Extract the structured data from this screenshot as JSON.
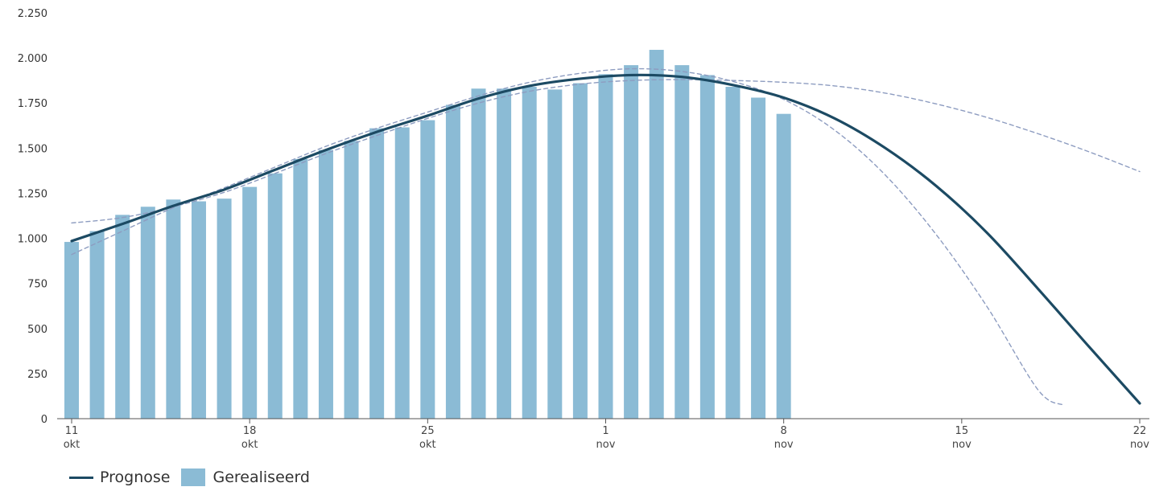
{
  "chart_data": {
    "type": "bar+line",
    "title": "",
    "xlabel": "",
    "ylabel": "",
    "ylim": [
      0,
      2250
    ],
    "yticks": [
      0,
      250,
      500,
      750,
      1000,
      1250,
      1500,
      1750,
      2000,
      2250
    ],
    "ytick_labels": [
      "0",
      "250",
      "500",
      "750",
      "1.000",
      "1.250",
      "1.500",
      "1.750",
      "2.000",
      "2.250"
    ],
    "xlim": [
      "2020-10-11",
      "2020-11-22"
    ],
    "xticks": [
      {
        "date": "2020-10-11",
        "day": "11",
        "month": "okt"
      },
      {
        "date": "2020-10-18",
        "day": "18",
        "month": "okt"
      },
      {
        "date": "2020-10-25",
        "day": "25",
        "month": "okt"
      },
      {
        "date": "2020-11-01",
        "day": "1",
        "month": "nov"
      },
      {
        "date": "2020-11-08",
        "day": "8",
        "month": "nov"
      },
      {
        "date": "2020-11-15",
        "day": "15",
        "month": "nov"
      },
      {
        "date": "2020-11-22",
        "day": "22",
        "month": "nov"
      }
    ],
    "grid": false,
    "legend_position": "bottom-left",
    "series": [
      {
        "name": "Gerealiseerd",
        "type": "bar",
        "color": "#8bbbd5",
        "x": [
          "2020-10-11",
          "2020-10-12",
          "2020-10-13",
          "2020-10-14",
          "2020-10-15",
          "2020-10-16",
          "2020-10-17",
          "2020-10-18",
          "2020-10-19",
          "2020-10-20",
          "2020-10-21",
          "2020-10-22",
          "2020-10-23",
          "2020-10-24",
          "2020-10-25",
          "2020-10-26",
          "2020-10-27",
          "2020-10-28",
          "2020-10-29",
          "2020-10-30",
          "2020-10-31",
          "2020-11-01",
          "2020-11-02",
          "2020-11-03",
          "2020-11-04",
          "2020-11-05",
          "2020-11-06",
          "2020-11-07",
          "2020-11-08"
        ],
        "values": [
          980,
          1040,
          1130,
          1175,
          1215,
          1205,
          1220,
          1285,
          1360,
          1440,
          1490,
          1540,
          1610,
          1615,
          1655,
          1740,
          1830,
          1830,
          1840,
          1825,
          1860,
          1910,
          1960,
          2045,
          1960,
          1905,
          1840,
          1780,
          1690
        ]
      },
      {
        "name": "Prognose",
        "type": "line",
        "color": "#1c4a63",
        "x": [
          "2020-10-11",
          "2020-10-13",
          "2020-10-15",
          "2020-10-17",
          "2020-10-19",
          "2020-10-21",
          "2020-10-23",
          "2020-10-25",
          "2020-10-27",
          "2020-10-29",
          "2020-10-31",
          "2020-11-02",
          "2020-11-04",
          "2020-11-06",
          "2020-11-08",
          "2020-11-10",
          "2020-11-12",
          "2020-11-14",
          "2020-11-16",
          "2020-11-18",
          "2020-11-20",
          "2020-11-22"
        ],
        "values": [
          985,
          1080,
          1180,
          1270,
          1380,
          1490,
          1590,
          1680,
          1775,
          1845,
          1885,
          1905,
          1895,
          1850,
          1780,
          1665,
          1500,
          1290,
          1030,
          720,
          400,
          85
        ]
      },
      {
        "type": "line",
        "style": "dashed",
        "color": "#8d9cc0",
        "x": [
          "2020-10-11",
          "2020-10-13",
          "2020-10-15",
          "2020-10-17",
          "2020-10-19",
          "2020-10-21",
          "2020-10-23",
          "2020-10-25",
          "2020-10-27",
          "2020-10-29",
          "2020-10-31",
          "2020-11-02",
          "2020-11-04",
          "2020-11-06",
          "2020-11-08",
          "2020-11-10",
          "2020-11-12",
          "2020-11-14",
          "2020-11-16",
          "2020-11-18",
          "2020-11-20",
          "2020-11-22"
        ],
        "values": [
          1085,
          1115,
          1175,
          1255,
          1360,
          1470,
          1570,
          1665,
          1750,
          1815,
          1855,
          1875,
          1880,
          1875,
          1865,
          1845,
          1805,
          1745,
          1670,
          1580,
          1480,
          1370
        ]
      },
      {
        "type": "line",
        "style": "dashed",
        "color": "#8d9cc0",
        "x": [
          "2020-10-11",
          "2020-10-13",
          "2020-10-15",
          "2020-10-17",
          "2020-10-19",
          "2020-10-21",
          "2020-10-23",
          "2020-10-25",
          "2020-10-27",
          "2020-10-29",
          "2020-10-31",
          "2020-11-02",
          "2020-11-04",
          "2020-11-06",
          "2020-11-08",
          "2020-11-10",
          "2020-11-12",
          "2020-11-14",
          "2020-11-16",
          "2020-11-18",
          "2020-11-19"
        ],
        "values": [
          910,
          1040,
          1170,
          1280,
          1395,
          1510,
          1610,
          1700,
          1790,
          1865,
          1915,
          1940,
          1925,
          1870,
          1770,
          1600,
          1350,
          1020,
          620,
          160,
          75
        ]
      }
    ]
  }
}
